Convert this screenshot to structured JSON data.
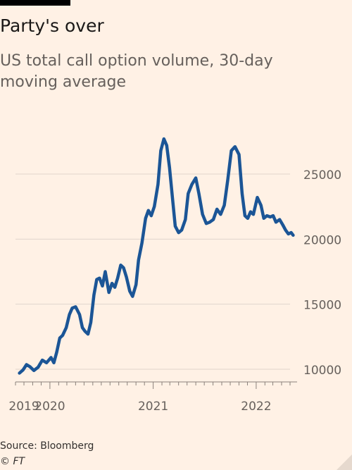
{
  "header": {
    "title": "Party's over",
    "subtitle": "US total call option volume, 30-day moving average"
  },
  "footer": {
    "source": "Source: Bloomberg",
    "copyright": "© FT"
  },
  "colors": {
    "line": "#1b5596",
    "grid": "#e0d5cc",
    "axis_text": "#66605c",
    "background": "#fff1e5"
  },
  "chart_data": {
    "type": "line",
    "title": "Party's over",
    "subtitle": "US total call option volume, 30-day moving average",
    "xlabel": "",
    "ylabel": "",
    "xlim": [
      "2019-09",
      "2022-05"
    ],
    "ylim": [
      9000,
      28000
    ],
    "yticks": [
      10000,
      15000,
      20000,
      25000
    ],
    "ytick_labels": [
      "10000",
      "15000",
      "20000",
      "25000"
    ],
    "y_axis_side": "right",
    "xticks": [
      "2019-10",
      "2020-01",
      "2021-01",
      "2022-01"
    ],
    "xtick_labels": [
      "2019",
      "2020",
      "2021",
      "2022"
    ],
    "grid": true,
    "series": [
      {
        "x": [
          "2019-09-15",
          "2019-09-28",
          "2019-10-10",
          "2019-10-22",
          "2019-11-05",
          "2019-11-20",
          "2019-12-05",
          "2019-12-20",
          "2020-01-05",
          "2020-01-15",
          "2020-01-25",
          "2020-02-05",
          "2020-02-15",
          "2020-02-28",
          "2020-03-10",
          "2020-03-20",
          "2020-04-01",
          "2020-04-15",
          "2020-04-25",
          "2020-05-05",
          "2020-05-15",
          "2020-05-25",
          "2020-06-05",
          "2020-06-15",
          "2020-06-25",
          "2020-07-05",
          "2020-07-15",
          "2020-07-28",
          "2020-08-08",
          "2020-08-18",
          "2020-08-28",
          "2020-09-08",
          "2020-09-18",
          "2020-09-28",
          "2020-10-10",
          "2020-10-20",
          "2020-11-01",
          "2020-11-10",
          "2020-11-22",
          "2020-12-05",
          "2020-12-15",
          "2020-12-25",
          "2021-01-05",
          "2021-01-18",
          "2021-01-28",
          "2021-02-08",
          "2021-02-18",
          "2021-02-28",
          "2021-03-10",
          "2021-03-20",
          "2021-04-01",
          "2021-04-12",
          "2021-04-25",
          "2021-05-05",
          "2021-05-18",
          "2021-06-01",
          "2021-06-12",
          "2021-06-25",
          "2021-07-08",
          "2021-07-20",
          "2021-08-02",
          "2021-08-15",
          "2021-08-28",
          "2021-09-10",
          "2021-09-22",
          "2021-10-05",
          "2021-10-18",
          "2021-11-01",
          "2021-11-12",
          "2021-11-22",
          "2021-12-02",
          "2021-12-12",
          "2021-12-22",
          "2022-01-05",
          "2022-01-18",
          "2022-01-28",
          "2022-02-08",
          "2022-02-20",
          "2022-03-02",
          "2022-03-12",
          "2022-03-25",
          "2022-04-05",
          "2022-04-15",
          "2022-04-25",
          "2022-05-05",
          "2022-05-12"
        ],
        "values": [
          9700,
          9950,
          10350,
          10200,
          9900,
          10150,
          10700,
          10500,
          10900,
          10500,
          11300,
          12400,
          12600,
          13200,
          14200,
          14700,
          14800,
          14200,
          13200,
          12900,
          12700,
          13600,
          15700,
          16900,
          17000,
          16400,
          17500,
          15900,
          16600,
          16300,
          17000,
          18000,
          17800,
          17100,
          16000,
          15600,
          16500,
          18400,
          19700,
          21600,
          22200,
          21800,
          22500,
          24200,
          26800,
          27700,
          27200,
          25500,
          23200,
          21000,
          20500,
          20700,
          21500,
          23500,
          24200,
          24700,
          23500,
          21900,
          21200,
          21300,
          21500,
          22300,
          21900,
          22600,
          24500,
          26800,
          27100,
          26500,
          23500,
          21800,
          21600,
          22100,
          21900,
          23200,
          22600,
          21600,
          21800,
          21700,
          21800,
          21300,
          21500,
          21100,
          20700,
          20400,
          20500,
          20300
        ]
      }
    ]
  }
}
